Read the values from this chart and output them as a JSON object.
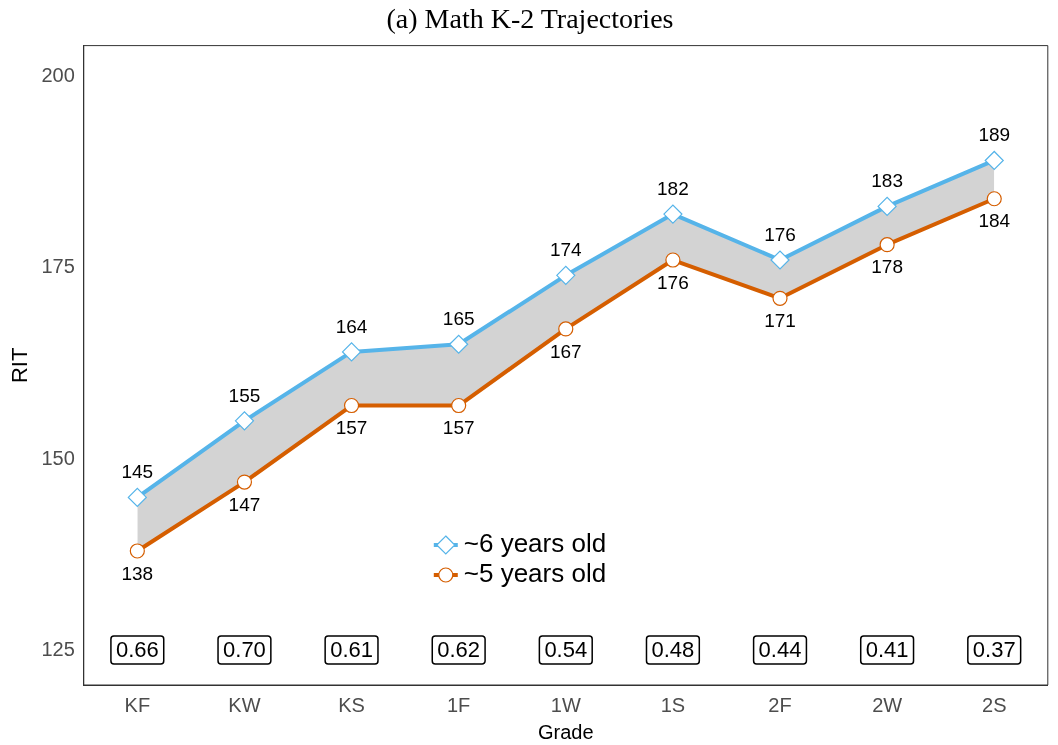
{
  "chart_data": {
    "type": "line",
    "title": "(a) Math K-2 Trajectories",
    "xlabel": "Grade",
    "ylabel": "RIT",
    "categories": [
      "KF",
      "KW",
      "KS",
      "1F",
      "1W",
      "1S",
      "2F",
      "2W",
      "2S"
    ],
    "series": [
      {
        "name": "~6 years old",
        "color": "#56b4e9",
        "marker": "diamond",
        "values": [
          145,
          155,
          164,
          165,
          174,
          182,
          176,
          183,
          189
        ]
      },
      {
        "name": "~5 years old",
        "color": "#d55e00",
        "marker": "circle",
        "values": [
          138,
          147,
          157,
          157,
          167,
          176,
          171,
          178,
          184
        ]
      }
    ],
    "ylim": [
      120.5,
      204
    ],
    "yticks": [
      125,
      150,
      175,
      200
    ],
    "grid": false,
    "legend": "bottom",
    "data_labels": true,
    "annotations": [
      "0.66",
      "0.70",
      "0.61",
      "0.62",
      "0.54",
      "0.48",
      "0.44",
      "0.41",
      "0.37"
    ]
  }
}
